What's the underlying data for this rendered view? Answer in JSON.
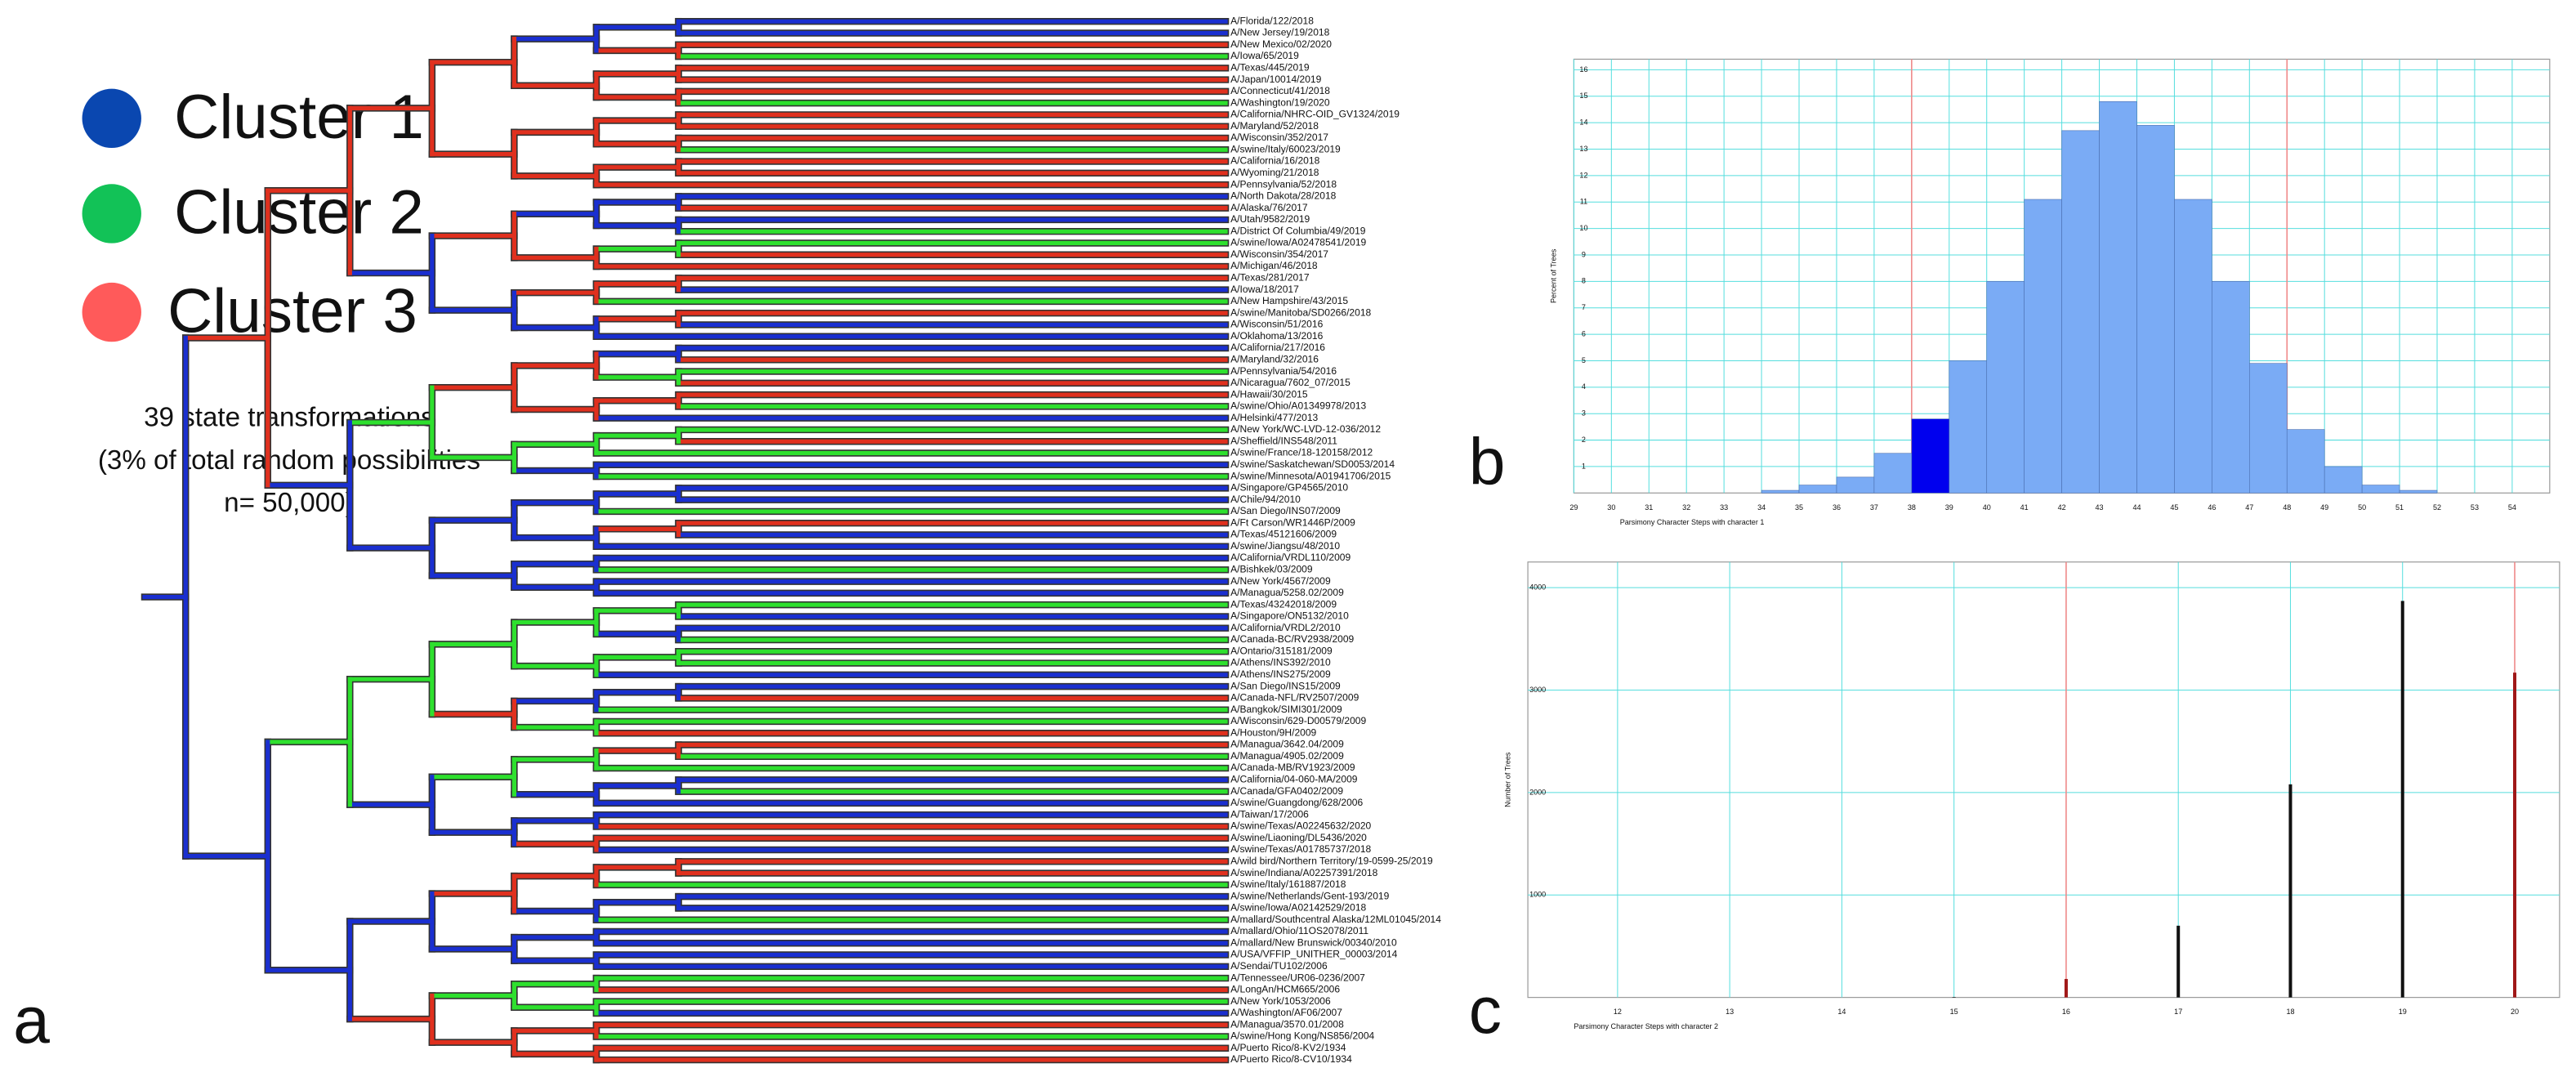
{
  "legend": [
    {
      "label": "Cluster 1",
      "color": "#0a47b0"
    },
    {
      "label": "Cluster 2",
      "color": "#12c257"
    },
    {
      "label": "Cluster 3",
      "color": "#ff5a5a"
    }
  ],
  "caption": [
    "39 state transformations",
    "(3% of total random possibilities",
    "n=  50,000)"
  ],
  "panels": [
    "a",
    "b",
    "c"
  ],
  "tree": {
    "leaves": [
      {
        "label": "A/Florida/122/2018",
        "color": "#1a2fd0"
      },
      {
        "label": "A/New Jersey/19/2018",
        "color": "#1a2fd0"
      },
      {
        "label": "A/New Mexico/02/2020",
        "color": "#e0301e"
      },
      {
        "label": "A/Iowa/65/2019",
        "color": "#2ee02e"
      },
      {
        "label": "A/Texas/445/2019",
        "color": "#e0301e"
      },
      {
        "label": "A/Japan/10014/2019",
        "color": "#e0301e"
      },
      {
        "label": "A/Connecticut/41/2018",
        "color": "#e0301e"
      },
      {
        "label": "A/Washington/19/2020",
        "color": "#2ee02e"
      },
      {
        "label": "A/California/NHRC-OID_GV1324/2019",
        "color": "#e0301e"
      },
      {
        "label": "A/Maryland/52/2018",
        "color": "#e0301e"
      },
      {
        "label": "A/Wisconsin/352/2017",
        "color": "#e0301e"
      },
      {
        "label": "A/swine/Italy/60023/2019",
        "color": "#2ee02e"
      },
      {
        "label": "A/California/16/2018",
        "color": "#e0301e"
      },
      {
        "label": "A/Wyoming/21/2018",
        "color": "#e0301e"
      },
      {
        "label": "A/Pennsylvania/52/2018",
        "color": "#e0301e"
      },
      {
        "label": "A/North Dakota/28/2018",
        "color": "#1a2fd0"
      },
      {
        "label": "A/Alaska/76/2017",
        "color": "#e0301e"
      },
      {
        "label": "A/Utah/9582/2019",
        "color": "#1a2fd0"
      },
      {
        "label": "A/District Of Columbia/49/2019",
        "color": "#2ee02e"
      },
      {
        "label": "A/swine/Iowa/A02478541/2019",
        "color": "#2ee02e"
      },
      {
        "label": "A/Wisconsin/354/2017",
        "color": "#e0301e"
      },
      {
        "label": "A/Michigan/46/2018",
        "color": "#e0301e"
      },
      {
        "label": "A/Texas/281/2017",
        "color": "#e0301e"
      },
      {
        "label": "A/Iowa/18/2017",
        "color": "#1a2fd0"
      },
      {
        "label": "A/New Hampshire/43/2015",
        "color": "#2ee02e"
      },
      {
        "label": "A/swine/Manitoba/SD0266/2018",
        "color": "#e0301e"
      },
      {
        "label": "A/Wisconsin/51/2016",
        "color": "#1a2fd0"
      },
      {
        "label": "A/Oklahoma/13/2016",
        "color": "#1a2fd0"
      },
      {
        "label": "A/California/217/2016",
        "color": "#1a2fd0"
      },
      {
        "label": "A/Maryland/32/2016",
        "color": "#e0301e"
      },
      {
        "label": "A/Pennsylvania/54/2016",
        "color": "#2ee02e"
      },
      {
        "label": "A/Nicaragua/7602_07/2015",
        "color": "#e0301e"
      },
      {
        "label": "A/Hawaii/30/2015",
        "color": "#e0301e"
      },
      {
        "label": "A/swine/Ohio/A01349978/2013",
        "color": "#2ee02e"
      },
      {
        "label": "A/Helsinki/477/2013",
        "color": "#1a2fd0"
      },
      {
        "label": "A/New York/WC-LVD-12-036/2012",
        "color": "#2ee02e"
      },
      {
        "label": "A/Sheffield/INS548/2011",
        "color": "#e0301e"
      },
      {
        "label": "A/swine/France/18-120158/2012",
        "color": "#2ee02e"
      },
      {
        "label": "A/swine/Saskatchewan/SD0053/2014",
        "color": "#1a2fd0"
      },
      {
        "label": "A/swine/Minnesota/A01941706/2015",
        "color": "#2ee02e"
      },
      {
        "label": "A/Singapore/GP4565/2010",
        "color": "#1a2fd0"
      },
      {
        "label": "A/Chile/94/2010",
        "color": "#1a2fd0"
      },
      {
        "label": "A/San Diego/INS07/2009",
        "color": "#2ee02e"
      },
      {
        "label": "A/Ft Carson/WR1446P/2009",
        "color": "#e0301e"
      },
      {
        "label": "A/Texas/45121606/2009",
        "color": "#1a2fd0"
      },
      {
        "label": "A/swine/Jiangsu/48/2010",
        "color": "#1a2fd0"
      },
      {
        "label": "A/California/VRDL110/2009",
        "color": "#1a2fd0"
      },
      {
        "label": "A/Bishkek/03/2009",
        "color": "#2ee02e"
      },
      {
        "label": "A/New York/4567/2009",
        "color": "#1a2fd0"
      },
      {
        "label": "A/Managua/5258.02/2009",
        "color": "#1a2fd0"
      },
      {
        "label": "A/Texas/43242018/2009",
        "color": "#2ee02e"
      },
      {
        "label": "A/Singapore/ON5132/2010",
        "color": "#1a2fd0"
      },
      {
        "label": "A/California/VRDL2/2010",
        "color": "#1a2fd0"
      },
      {
        "label": "A/Canada-BC/RV2938/2009",
        "color": "#2ee02e"
      },
      {
        "label": "A/Ontario/315181/2009",
        "color": "#2ee02e"
      },
      {
        "label": "A/Athens/INS392/2010",
        "color": "#2ee02e"
      },
      {
        "label": "A/Athens/INS275/2009",
        "color": "#1a2fd0"
      },
      {
        "label": "A/San Diego/INS15/2009",
        "color": "#1a2fd0"
      },
      {
        "label": "A/Canada-NFL/RV2507/2009",
        "color": "#e0301e"
      },
      {
        "label": "A/Bangkok/SIMI301/2009",
        "color": "#2ee02e"
      },
      {
        "label": "A/Wisconsin/629-D00579/2009",
        "color": "#2ee02e"
      },
      {
        "label": "A/Houston/9H/2009",
        "color": "#e0301e"
      },
      {
        "label": "A/Managua/3642.04/2009",
        "color": "#e0301e"
      },
      {
        "label": "A/Managua/4905.02/2009",
        "color": "#2ee02e"
      },
      {
        "label": "A/Canada-MB/RV1923/2009",
        "color": "#2ee02e"
      },
      {
        "label": "A/California/04-060-MA/2009",
        "color": "#1a2fd0"
      },
      {
        "label": "A/Canada/GFA0402/2009",
        "color": "#2ee02e"
      },
      {
        "label": "A/swine/Guangdong/628/2006",
        "color": "#1a2fd0"
      },
      {
        "label": "A/Taiwan/17/2006",
        "color": "#1a2fd0"
      },
      {
        "label": "A/swine/Texas/A02245632/2020",
        "color": "#e0301e"
      },
      {
        "label": "A/swine/Liaoning/DL5436/2020",
        "color": "#e0301e"
      },
      {
        "label": "A/swine/Texas/A01785737/2018",
        "color": "#1a2fd0"
      },
      {
        "label": "A/wild bird/Northern Territory/19-0599-25/2019",
        "color": "#e0301e"
      },
      {
        "label": "A/swine/Indiana/A02257391/2018",
        "color": "#e0301e"
      },
      {
        "label": "A/swine/Italy/161887/2018",
        "color": "#2ee02e"
      },
      {
        "label": "A/swine/Netherlands/Gent-193/2019",
        "color": "#1a2fd0"
      },
      {
        "label": "A/swine/Iowa/A02142529/2018",
        "color": "#1a2fd0"
      },
      {
        "label": "A/mallard/Southcentral Alaska/12ML01045/2014",
        "color": "#2ee02e"
      },
      {
        "label": "A/mallard/Ohio/11OS2078/2011",
        "color": "#1a2fd0"
      },
      {
        "label": "A/mallard/New Brunswick/00340/2010",
        "color": "#1a2fd0"
      },
      {
        "label": "A/USA/VFFIP_UNITHER_00003/2014",
        "color": "#1a2fd0"
      },
      {
        "label": "A/Sendai/TU102/2006",
        "color": "#1a2fd0"
      },
      {
        "label": "A/Tennessee/UR06-0236/2007",
        "color": "#2ee02e"
      },
      {
        "label": "A/LongAn/HCM665/2006",
        "color": "#e0301e"
      },
      {
        "label": "A/New York/1053/2006",
        "color": "#2ee02e"
      },
      {
        "label": "A/Washington/AF06/2007",
        "color": "#1a2fd0"
      },
      {
        "label": "A/Managua/3570.01/2008",
        "color": "#e0301e"
      },
      {
        "label": "A/swine/Hong Kong/NS856/2004",
        "color": "#2ee02e"
      },
      {
        "label": "A/Puerto Rico/8-KV2/1934",
        "color": "#e0301e"
      },
      {
        "label": "A/Puerto Rico/8-CV10/1934",
        "color": "#e0301e"
      }
    ]
  },
  "chart_data": [
    {
      "type": "histogram",
      "y_label": "Percent of Trees",
      "x_label": "Parsimony Character Steps with character 1",
      "bins": [
        34,
        35,
        36,
        37,
        38,
        39,
        40,
        41,
        42,
        43,
        44,
        45,
        46,
        47,
        48,
        49,
        50,
        51,
        52
      ],
      "values": [
        0.1,
        0.3,
        0.6,
        1.5,
        2.8,
        5.0,
        8.0,
        11.1,
        13.7,
        14.8,
        13.9,
        11.1,
        8.0,
        4.9,
        2.4,
        1.0,
        0.3,
        0.1
      ],
      "colors": [
        "#7aabf5",
        "#7aabf5",
        "#7aabf5",
        "#7aabf5",
        "#0000ee",
        "#7aabf5",
        "#7aabf5",
        "#7aabf5",
        "#7aabf5",
        "#7aabf5",
        "#7aabf5",
        "#7aabf5",
        "#7aabf5",
        "#7aabf5",
        "#7aabf5",
        "#7aabf5",
        "#7aabf5",
        "#7aabf5"
      ],
      "xlim": [
        29,
        55
      ],
      "xticks": [
        29,
        30,
        31,
        32,
        33,
        34,
        35,
        36,
        37,
        38,
        39,
        40,
        41,
        42,
        43,
        44,
        45,
        46,
        47,
        48,
        49,
        50,
        51,
        52,
        53,
        54
      ],
      "ylim": [
        0,
        16.4
      ],
      "yticks": [
        1,
        2,
        3,
        4,
        5,
        6,
        7,
        8,
        9,
        10,
        11,
        12,
        13,
        14,
        15,
        16
      ],
      "grid": true,
      "reference_lines": [
        38,
        48
      ],
      "reference_color": "#f08a8a"
    },
    {
      "type": "bar",
      "y_label": "Number of Trees",
      "x_label": "Parsimony Character Steps with character 2",
      "x": [
        15,
        16,
        17,
        18,
        19,
        20
      ],
      "values": [
        5,
        180,
        700,
        2080,
        3870,
        3170
      ],
      "colors": [
        "#111111",
        "#a01818",
        "#111111",
        "#111111",
        "#111111",
        "#a01818"
      ],
      "xlim": [
        11.2,
        20.4
      ],
      "xticks": [
        12,
        13,
        14,
        15,
        16,
        17,
        18,
        19,
        20
      ],
      "ylim": [
        0,
        4250
      ],
      "yticks": [
        1000,
        2000,
        3000,
        4000
      ],
      "grid": true,
      "reference_lines": [
        16,
        20
      ],
      "reference_color": "#f08a8a"
    }
  ]
}
